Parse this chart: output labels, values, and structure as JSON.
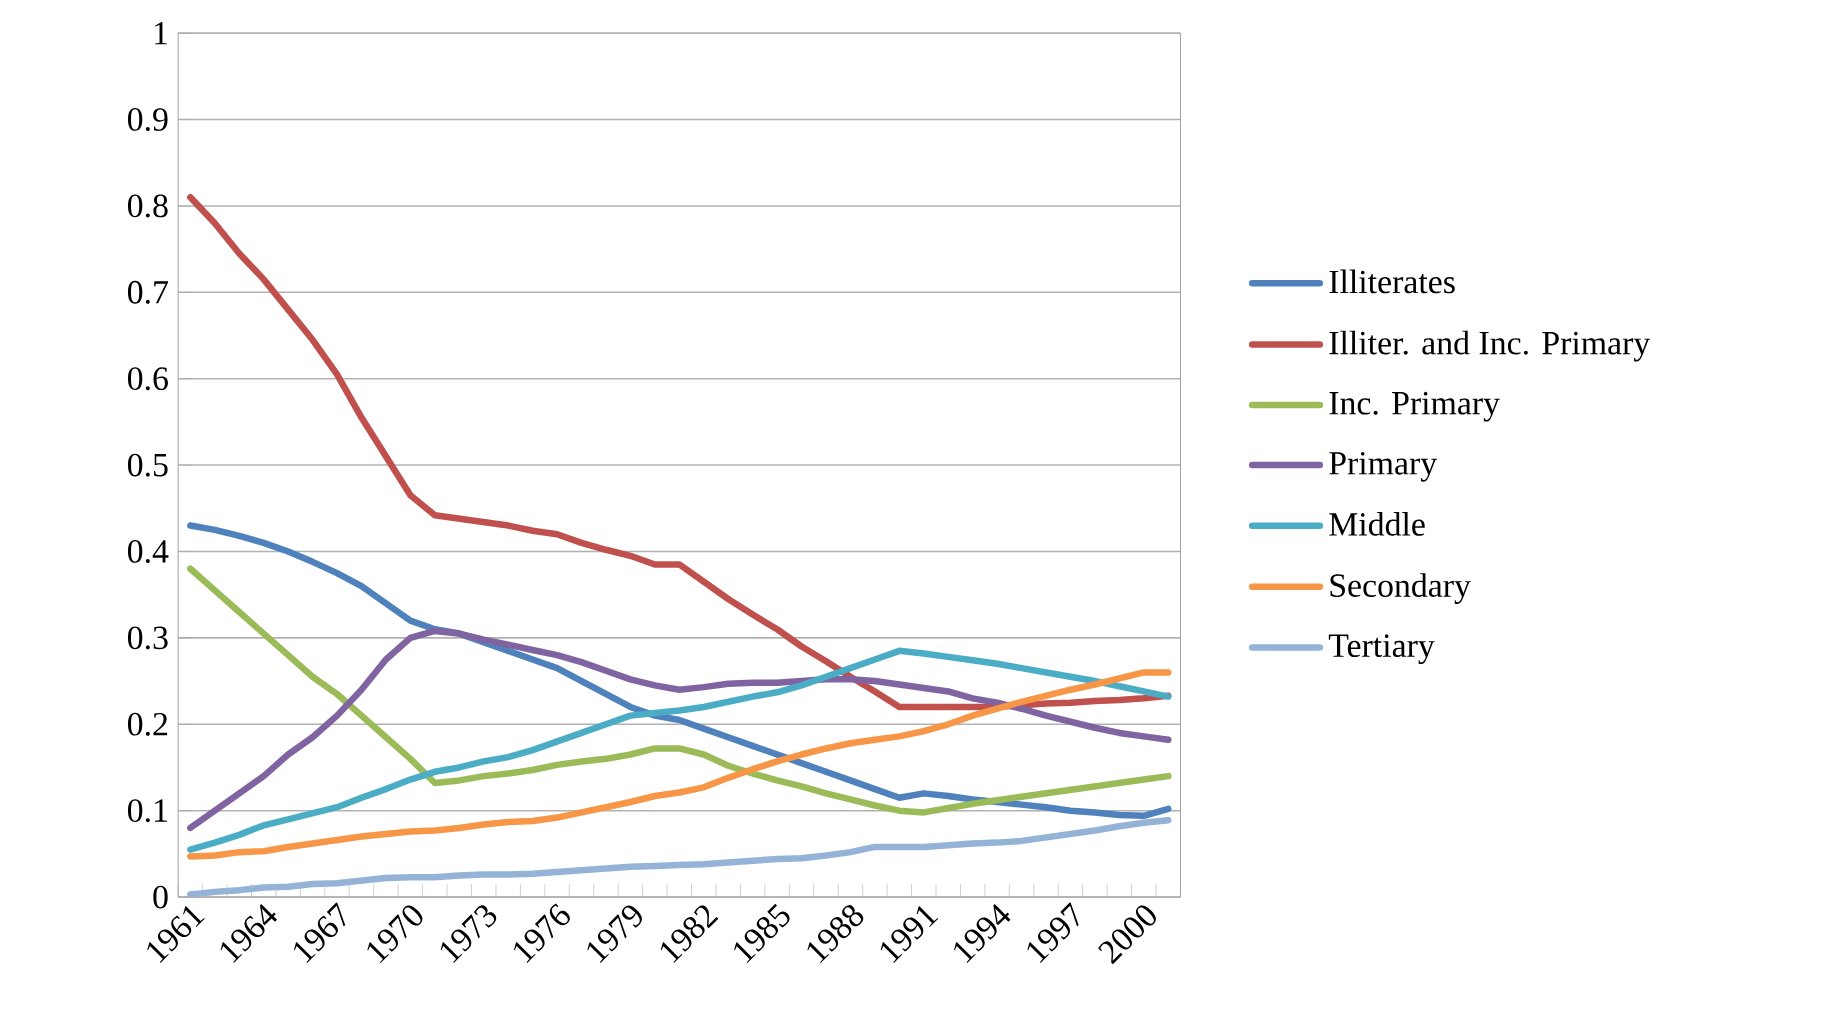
{
  "chart_data": {
    "type": "line",
    "categories": [
      "1961",
      null,
      null,
      "1964",
      null,
      null,
      "1967",
      null,
      null,
      "1970",
      null,
      null,
      "1973",
      null,
      null,
      "1976",
      null,
      null,
      "1979",
      null,
      null,
      "1982",
      null,
      null,
      "1985",
      null,
      null,
      "1988",
      null,
      null,
      "1991",
      null,
      null,
      "1994",
      null,
      null,
      "1997",
      null,
      null,
      "2000",
      null
    ],
    "ylim": [
      0,
      1
    ],
    "yticks": [
      0,
      0.1,
      0.2,
      0.3,
      0.4,
      0.5,
      0.6,
      0.7,
      0.8,
      0.9,
      1
    ],
    "grid": "y",
    "legend": "right",
    "line_style": "solid",
    "marker": "none",
    "series": [
      {
        "name": "Illiterates",
        "color": "#4f81bd",
        "values": [
          0.43,
          0.425,
          0.418,
          0.41,
          0.4,
          0.388,
          0.375,
          0.36,
          0.34,
          0.32,
          0.31,
          0.305,
          0.295,
          0.285,
          0.275,
          0.265,
          0.25,
          0.235,
          0.22,
          0.21,
          0.205,
          0.195,
          0.185,
          0.175,
          0.165,
          0.155,
          0.145,
          0.135,
          0.125,
          0.115,
          0.12,
          0.117,
          0.113,
          0.11,
          0.107,
          0.104,
          0.1,
          0.098,
          0.095,
          0.094,
          0.102
        ]
      },
      {
        "name": "Illiter. and Inc. Primary",
        "color": "#c0504d",
        "values": [
          0.81,
          0.78,
          0.745,
          0.715,
          0.68,
          0.645,
          0.605,
          0.555,
          0.51,
          0.465,
          0.442,
          0.438,
          0.434,
          0.43,
          0.424,
          0.42,
          0.41,
          0.402,
          0.395,
          0.385,
          0.385,
          0.365,
          0.345,
          0.327,
          0.31,
          0.29,
          0.273,
          0.255,
          0.238,
          0.22,
          0.22,
          0.22,
          0.22,
          0.22,
          0.222,
          0.224,
          0.225,
          0.227,
          0.228,
          0.23,
          0.233
        ]
      },
      {
        "name": "Inc. Primary",
        "color": "#9bbb59",
        "values": [
          0.38,
          0.355,
          0.33,
          0.305,
          0.28,
          0.255,
          0.235,
          0.21,
          0.185,
          0.16,
          0.132,
          0.135,
          0.14,
          0.143,
          0.147,
          0.153,
          0.157,
          0.16,
          0.165,
          0.172,
          0.172,
          0.165,
          0.152,
          0.143,
          0.135,
          0.128,
          0.12,
          0.113,
          0.106,
          0.1,
          0.098,
          0.103,
          0.108,
          0.112,
          0.116,
          0.12,
          0.124,
          0.128,
          0.132,
          0.136,
          0.14
        ]
      },
      {
        "name": "Primary",
        "color": "#8064a2",
        "values": [
          0.08,
          0.1,
          0.12,
          0.14,
          0.165,
          0.185,
          0.21,
          0.24,
          0.275,
          0.3,
          0.308,
          0.305,
          0.298,
          0.292,
          0.286,
          0.28,
          0.272,
          0.262,
          0.252,
          0.245,
          0.24,
          0.243,
          0.247,
          0.248,
          0.248,
          0.25,
          0.252,
          0.252,
          0.25,
          0.246,
          0.242,
          0.238,
          0.23,
          0.225,
          0.218,
          0.21,
          0.203,
          0.196,
          0.19,
          0.186,
          0.182
        ]
      },
      {
        "name": "Middle",
        "color": "#4bacc6",
        "values": [
          0.055,
          0.063,
          0.072,
          0.083,
          0.09,
          0.097,
          0.104,
          0.115,
          0.125,
          0.136,
          0.145,
          0.15,
          0.157,
          0.162,
          0.17,
          0.18,
          0.19,
          0.2,
          0.21,
          0.213,
          0.216,
          0.22,
          0.226,
          0.232,
          0.237,
          0.245,
          0.255,
          0.265,
          0.275,
          0.285,
          0.282,
          0.278,
          0.274,
          0.27,
          0.265,
          0.26,
          0.255,
          0.25,
          0.244,
          0.238,
          0.232
        ]
      },
      {
        "name": "Secondary",
        "color": "#f79646",
        "values": [
          0.047,
          0.048,
          0.052,
          0.053,
          0.058,
          0.062,
          0.066,
          0.07,
          0.073,
          0.076,
          0.077,
          0.08,
          0.084,
          0.087,
          0.088,
          0.092,
          0.098,
          0.104,
          0.11,
          0.117,
          0.121,
          0.127,
          0.138,
          0.148,
          0.157,
          0.165,
          0.172,
          0.178,
          0.182,
          0.186,
          0.192,
          0.2,
          0.21,
          0.218,
          0.226,
          0.233,
          0.24,
          0.246,
          0.253,
          0.26,
          0.26
        ]
      },
      {
        "name": "Tertiary",
        "color": "#95b3d7",
        "values": [
          0.003,
          0.006,
          0.008,
          0.011,
          0.012,
          0.015,
          0.016,
          0.019,
          0.022,
          0.023,
          0.023,
          0.025,
          0.026,
          0.026,
          0.027,
          0.029,
          0.031,
          0.033,
          0.035,
          0.036,
          0.037,
          0.038,
          0.04,
          0.042,
          0.044,
          0.045,
          0.048,
          0.052,
          0.058,
          0.058,
          0.058,
          0.06,
          0.062,
          0.063,
          0.065,
          0.069,
          0.073,
          0.077,
          0.082,
          0.086,
          0.089
        ]
      }
    ]
  }
}
